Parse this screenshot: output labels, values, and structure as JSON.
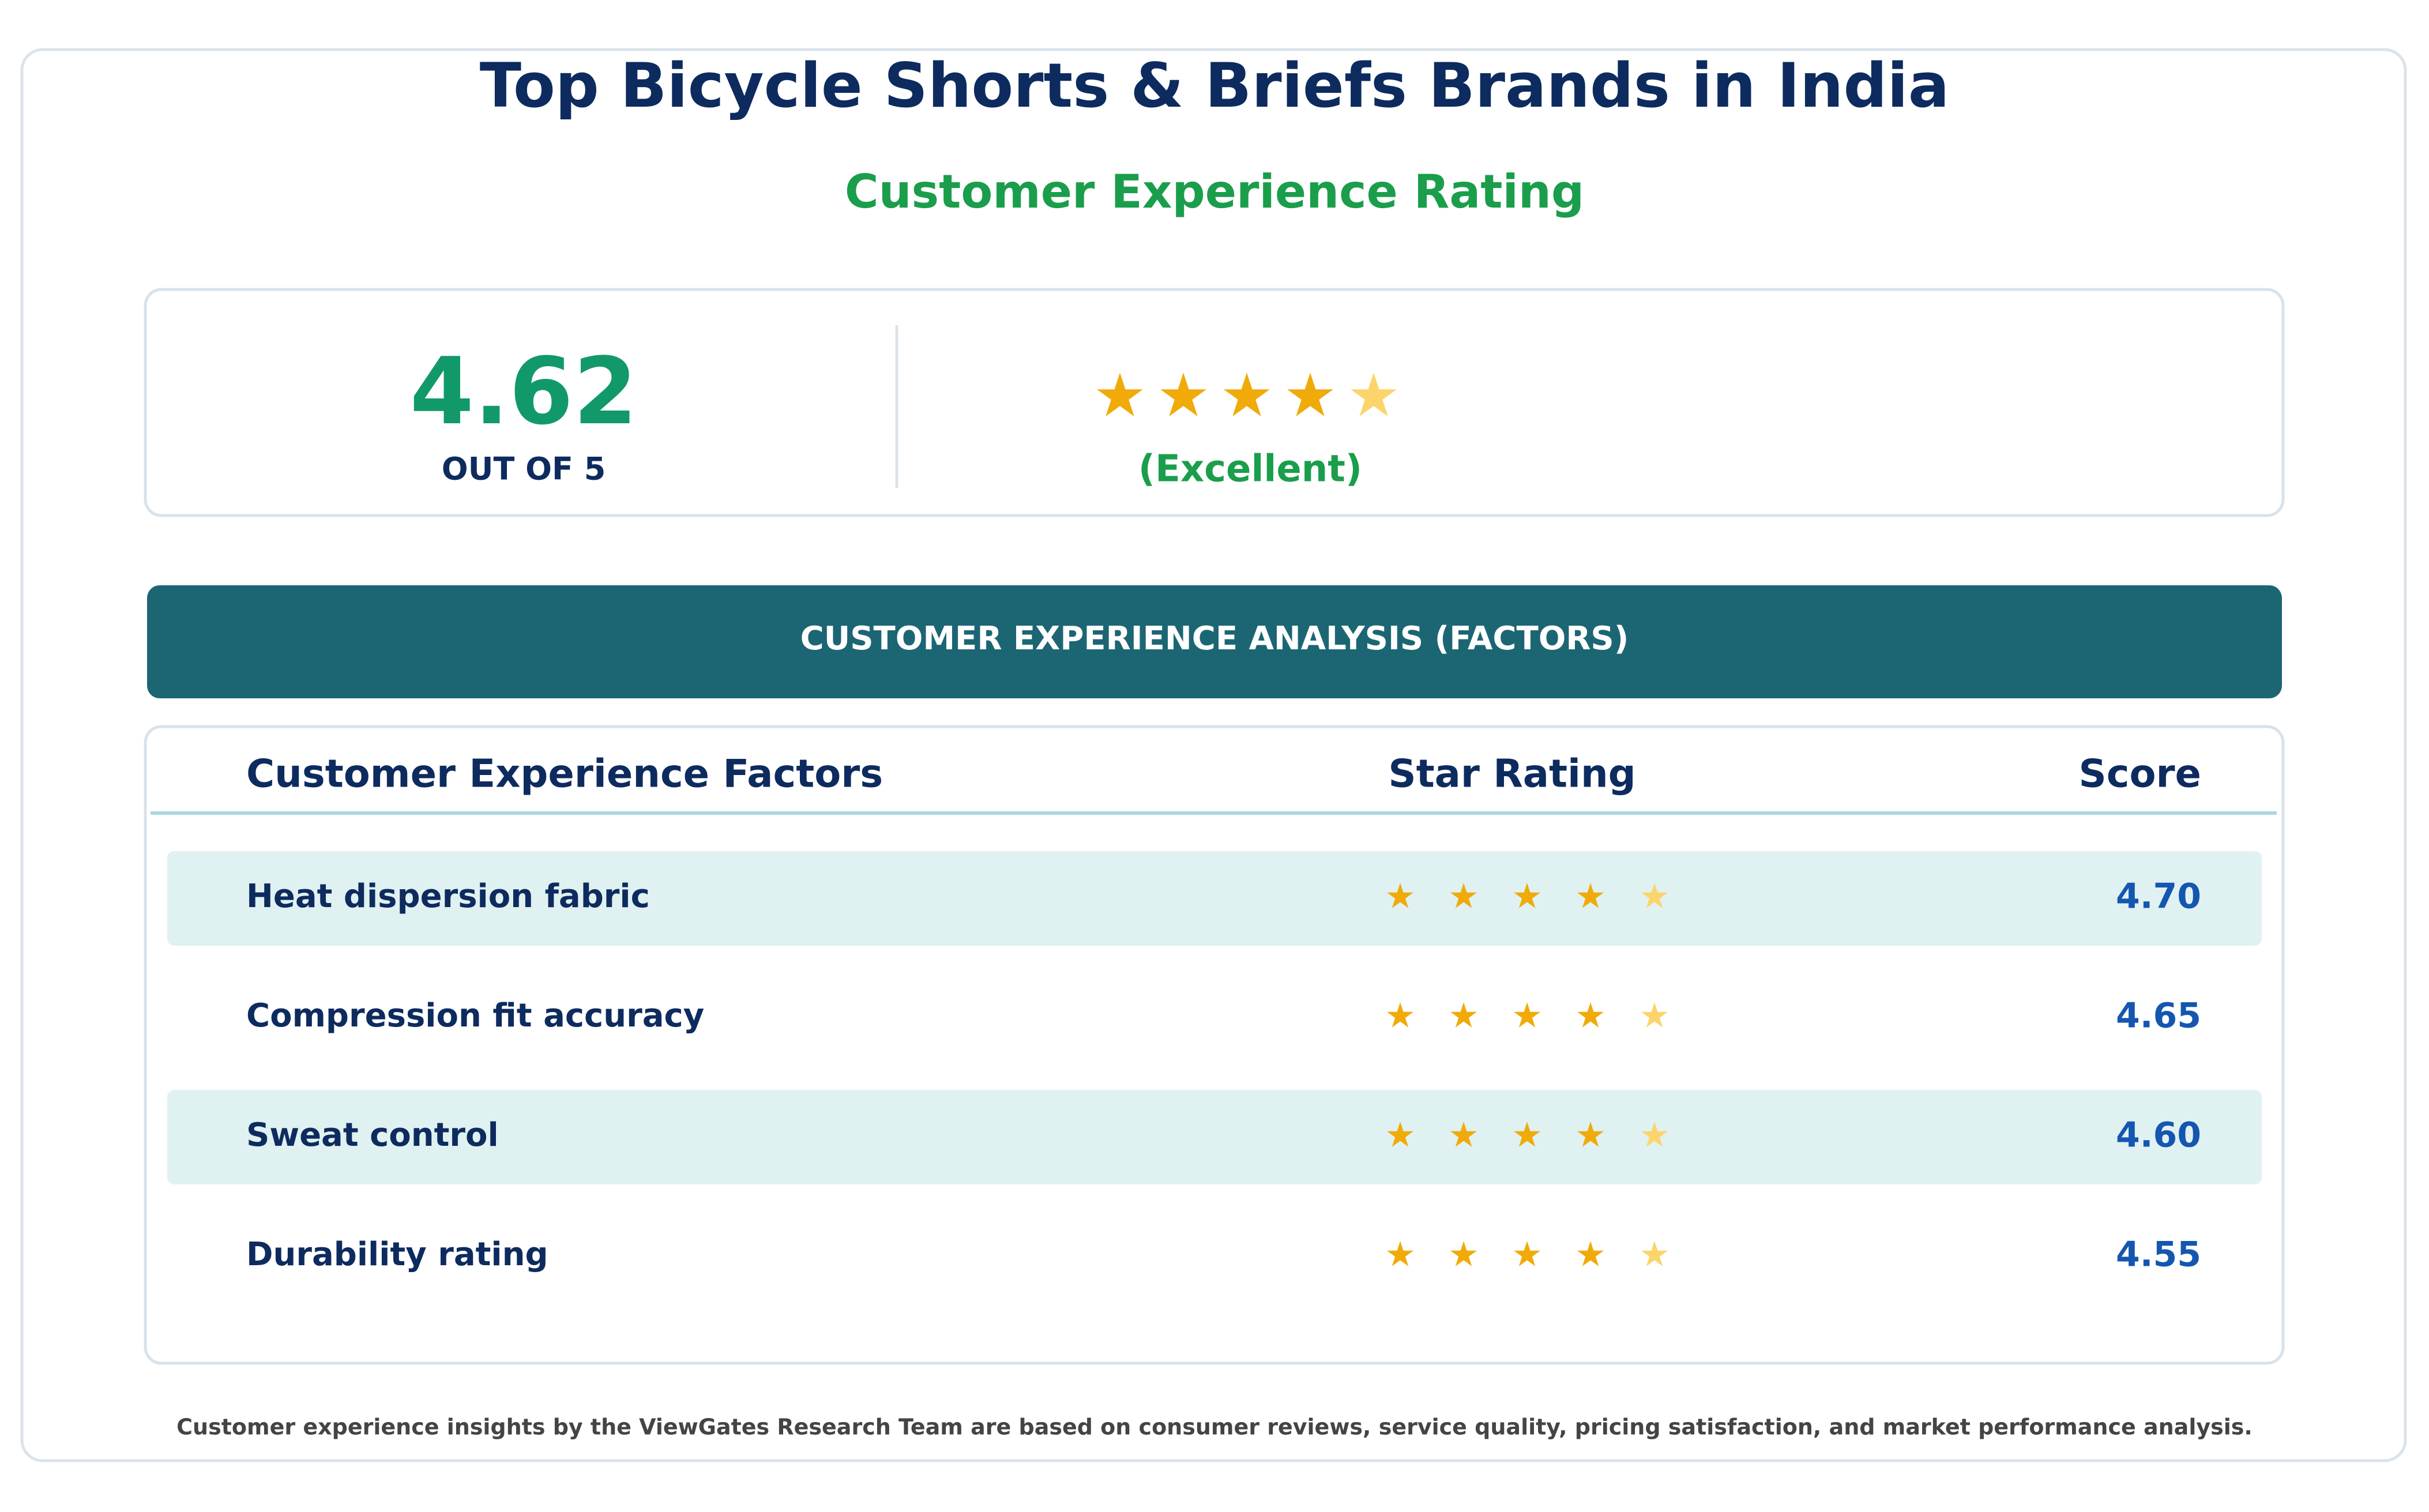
{
  "header": {
    "title": "Top Bicycle Shorts & Briefs Brands in India",
    "subtitle": "Customer Experience Rating"
  },
  "summary": {
    "score": "4.62",
    "scale": "OUT OF 5",
    "label": "(Excellent)"
  },
  "section_title": "CUSTOMER EXPERIENCE ANALYSIS (FACTORS)",
  "table": {
    "columns": [
      "Customer Experience Factors",
      "Star Rating",
      "Score"
    ],
    "rows": [
      [
        "Heat dispersion fabric",
        "4.70"
      ],
      [
        "Compression fit accuracy",
        "4.65"
      ],
      [
        "Sweat control",
        "4.60"
      ],
      [
        "Durability rating",
        "4.55"
      ]
    ]
  },
  "footer": "Customer experience insights by the ViewGates Research Team are based on consumer reviews, service quality, pricing satisfaction, and market performance analysis."
}
